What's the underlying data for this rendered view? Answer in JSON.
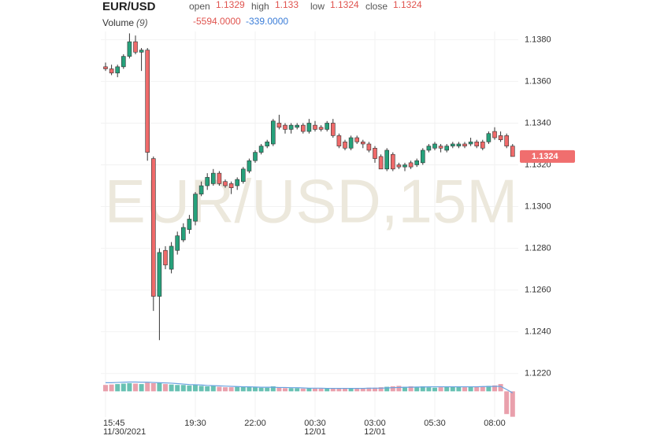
{
  "chart_data": {
    "type": "candlestick",
    "title": "EUR/USD",
    "watermark": "EUR/USD,15M",
    "legend_labels": [
      "open",
      "high",
      "low",
      "close"
    ],
    "up_color": "#26a17b",
    "down_color": "#ef6a6a",
    "categories": [
      "15:45",
      null,
      null,
      null,
      null,
      null,
      null,
      null,
      null,
      null,
      null,
      null,
      null,
      null,
      null,
      "19:30",
      null,
      null,
      null,
      null,
      null,
      null,
      null,
      null,
      null,
      "22:00",
      null,
      null,
      null,
      null,
      null,
      null,
      null,
      null,
      null,
      "00:30",
      null,
      null,
      null,
      null,
      null,
      null,
      null,
      null,
      null,
      "03:00",
      null,
      null,
      null,
      null,
      null,
      null,
      null,
      null,
      null,
      "05:30",
      null,
      null,
      null,
      null,
      null,
      null,
      null,
      null,
      null,
      "08:00",
      null,
      null,
      null
    ],
    "category_dates": [
      "11/30/2021",
      null,
      null,
      null,
      null,
      null,
      null,
      null,
      null,
      null,
      null,
      null,
      null,
      null,
      null,
      null,
      null,
      null,
      null,
      null,
      null,
      null,
      null,
      null,
      null,
      null,
      null,
      null,
      null,
      null,
      null,
      null,
      null,
      null,
      null,
      "12/01",
      null,
      null,
      null,
      null,
      null,
      null,
      null,
      null,
      null,
      "12/01",
      null,
      null,
      null,
      null,
      null,
      null,
      null,
      null,
      null,
      null,
      null,
      null,
      null,
      null,
      null,
      null,
      null,
      null,
      null,
      null,
      null,
      null,
      null
    ],
    "candles": {
      "open": [
        1.1367,
        1.1366,
        1.1364,
        1.1367,
        1.1372,
        1.1379,
        1.1374,
        1.1375,
        1.1323,
        1.1257,
        1.1279,
        1.127,
        1.1279,
        1.1284,
        1.1289,
        1.1293,
        1.1306,
        1.131,
        1.1311,
        1.1316,
        1.1312,
        1.1311,
        1.131,
        1.1312,
        1.1317,
        1.1322,
        1.1326,
        1.1329,
        1.133,
        1.134,
        1.1339,
        1.1337,
        1.1338,
        1.1339,
        1.1336,
        1.1339,
        1.1338,
        1.1337,
        1.134,
        1.1334,
        1.1331,
        1.1328,
        1.1333,
        1.1331,
        1.133,
        1.1328,
        1.1324,
        1.1318,
        1.1325,
        1.132,
        1.1319,
        1.1321,
        1.132,
        1.1321,
        1.1327,
        1.1328,
        1.1329,
        1.1327,
        1.1329,
        1.1329,
        1.133,
        1.133,
        1.1331,
        1.1331,
        1.1331,
        1.1336,
        1.1334,
        1.1334,
        1.1329
      ],
      "high": [
        1.1369,
        1.1368,
        1.1368,
        1.1373,
        1.1383,
        1.1382,
        1.1376,
        1.1376,
        1.1324,
        1.128,
        1.1281,
        1.1283,
        1.1288,
        1.1292,
        1.1296,
        1.1307,
        1.1312,
        1.1316,
        1.1318,
        1.1317,
        1.1313,
        1.1312,
        1.1314,
        1.1319,
        1.1323,
        1.1327,
        1.133,
        1.1332,
        1.1342,
        1.1344,
        1.134,
        1.134,
        1.134,
        1.134,
        1.1342,
        1.1341,
        1.1339,
        1.1341,
        1.1342,
        1.1335,
        1.1332,
        1.1334,
        1.1334,
        1.1332,
        1.1331,
        1.1329,
        1.1325,
        1.1328,
        1.1326,
        1.1321,
        1.1321,
        1.1322,
        1.1323,
        1.1328,
        1.133,
        1.1331,
        1.133,
        1.133,
        1.1331,
        1.1331,
        1.1331,
        1.1333,
        1.1332,
        1.1332,
        1.1336,
        1.1338,
        1.1336,
        1.1335,
        1.133
      ],
      "low": [
        1.1365,
        1.1363,
        1.1362,
        1.1366,
        1.1371,
        1.1373,
        1.1365,
        1.1322,
        1.125,
        1.1236,
        1.127,
        1.1268,
        1.1277,
        1.1283,
        1.1287,
        1.1291,
        1.1305,
        1.1308,
        1.131,
        1.131,
        1.1309,
        1.1306,
        1.1308,
        1.1311,
        1.1316,
        1.1321,
        1.1325,
        1.1328,
        1.1329,
        1.1337,
        1.1335,
        1.1335,
        1.1337,
        1.1335,
        1.1335,
        1.1336,
        1.1336,
        1.1336,
        1.1333,
        1.1328,
        1.1327,
        1.1327,
        1.133,
        1.1328,
        1.1326,
        1.1321,
        1.1318,
        1.1317,
        1.1317,
        1.1318,
        1.1317,
        1.1318,
        1.1319,
        1.132,
        1.1326,
        1.1327,
        1.1326,
        1.1326,
        1.1328,
        1.1328,
        1.1328,
        1.1329,
        1.1328,
        1.1327,
        1.133,
        1.1332,
        1.1331,
        1.1328,
        1.1324
      ],
      "close": [
        1.1366,
        1.1364,
        1.1367,
        1.1372,
        1.1379,
        1.1374,
        1.1375,
        1.1326,
        1.1257,
        1.1278,
        1.1272,
        1.1281,
        1.1286,
        1.129,
        1.1294,
        1.1306,
        1.131,
        1.1314,
        1.1316,
        1.1311,
        1.131,
        1.1309,
        1.1313,
        1.1318,
        1.1322,
        1.1326,
        1.1329,
        1.1331,
        1.1341,
        1.1338,
        1.1337,
        1.1339,
        1.1339,
        1.1336,
        1.134,
        1.1337,
        1.1337,
        1.134,
        1.1334,
        1.1329,
        1.1328,
        1.1333,
        1.1331,
        1.133,
        1.1327,
        1.1323,
        1.1318,
        1.1327,
        1.1318,
        1.1319,
        1.132,
        1.1319,
        1.1322,
        1.1327,
        1.1329,
        1.133,
        1.1328,
        1.1329,
        1.133,
        1.133,
        1.1329,
        1.1331,
        1.1329,
        1.1328,
        1.1335,
        1.1333,
        1.1332,
        1.1329,
        1.1324
      ]
    },
    "ylim": [
      1.1218,
      1.1399
    ],
    "yticks": [
      {
        "value": 1.122,
        "label": "1.1220"
      },
      {
        "value": 1.124,
        "label": "1.1240"
      },
      {
        "value": 1.126,
        "label": "1.1260"
      },
      {
        "value": 1.128,
        "label": "1.1280"
      },
      {
        "value": 1.13,
        "label": "1.1300"
      },
      {
        "value": 1.132,
        "label": "1.1320"
      },
      {
        "value": 1.134,
        "label": "1.1340"
      },
      {
        "value": 1.136,
        "label": "1.1360"
      },
      {
        "value": 1.138,
        "label": "1.1380"
      }
    ],
    "grid": true,
    "volume": {
      "name": "Volume",
      "period_label": "(9)",
      "values": [
        1400,
        1500,
        1600,
        1700,
        1800,
        1700,
        1600,
        1900,
        1800,
        1900,
        1600,
        1500,
        1400,
        1400,
        1300,
        1500,
        1200,
        1100,
        1200,
        1000,
        900,
        900,
        1000,
        1100,
        1000,
        900,
        800,
        800,
        1100,
        900,
        700,
        700,
        700,
        600,
        700,
        600,
        600,
        600,
        700,
        700,
        600,
        600,
        700,
        700,
        800,
        800,
        900,
        1000,
        1100,
        1200,
        1000,
        1100,
        1000,
        1100,
        900,
        800,
        900,
        1000,
        1000,
        1000,
        900,
        1000,
        1100,
        1100,
        1200,
        1300,
        1600,
        -5000,
        -5594
      ],
      "last_label": "-5594.0000",
      "ma_values": [
        1900,
        1900,
        1950,
        2000,
        2050,
        2050,
        2000,
        2000,
        1950,
        1900,
        1850,
        1800,
        1700,
        1600,
        1500,
        1450,
        1400,
        1300,
        1250,
        1200,
        1150,
        1100,
        1050,
        1000,
        1000,
        950,
        900,
        900,
        900,
        850,
        850,
        800,
        800,
        750,
        700,
        700,
        700,
        650,
        650,
        650,
        650,
        650,
        650,
        650,
        700,
        700,
        700,
        750,
        800,
        850,
        900,
        900,
        950,
        950,
        1000,
        1000,
        1000,
        1000,
        1000,
        1000,
        1000,
        1000,
        1000,
        1050,
        1050,
        1100,
        1100,
        400,
        -339
      ],
      "ma_last_label": "-339.0000",
      "ma_color": "#6aa3e0",
      "ylim": [
        -6000,
        3000
      ]
    }
  }
}
